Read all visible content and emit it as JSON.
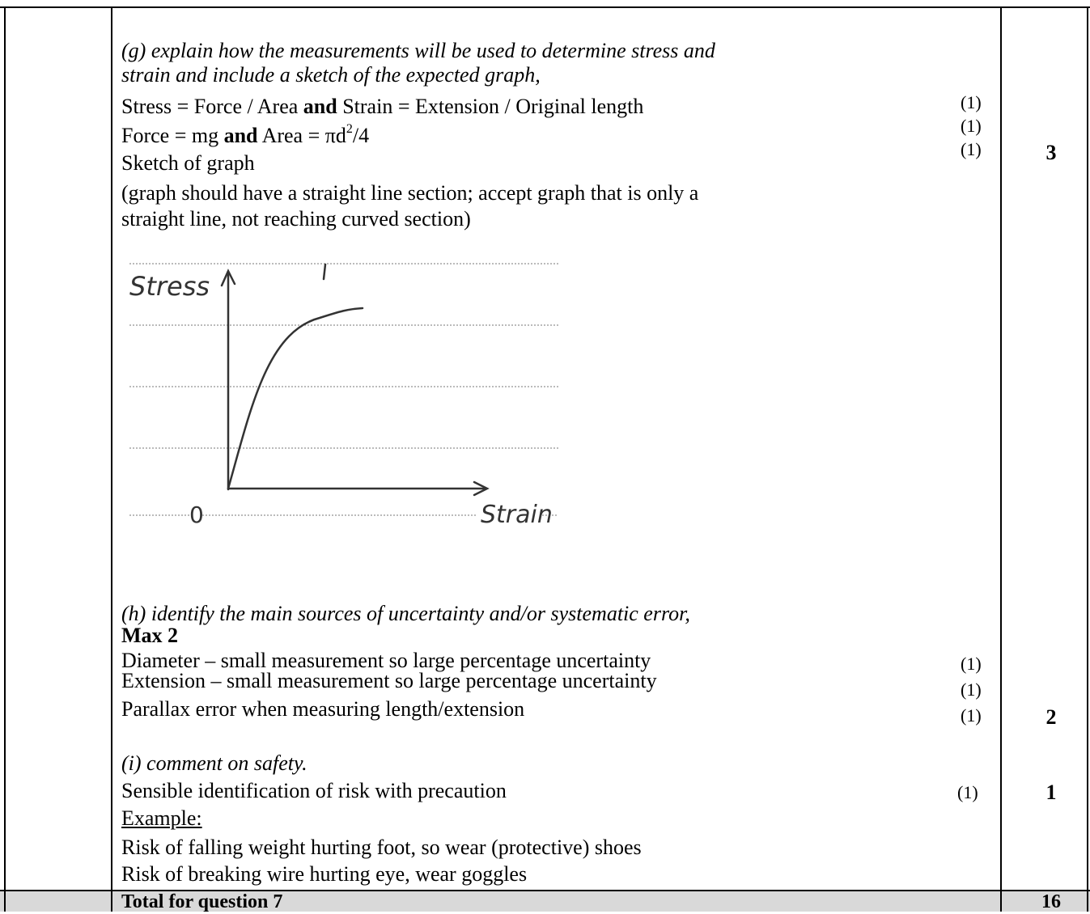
{
  "question_g": {
    "prompt_line1": "(g) explain how the measurements will be used to determine stress and",
    "prompt_line2": "strain and include a sketch of the expected graph,",
    "line1_a": "Stress = Force / Area ",
    "line1_bold": "and",
    "line1_b": " Strain = Extension / Original length",
    "line2_a": "Force = mg ",
    "line2_bold": "and",
    "line2_b": " Area = πd",
    "line2_sup": "2",
    "line2_c": "/4",
    "line3": "Sketch of graph",
    "line4": "(graph should have a straight line section; accept graph that is only a",
    "line5": "straight line, not reaching curved section)",
    "marks": [
      "(1)",
      "(1)",
      "(1)"
    ],
    "total": "3"
  },
  "sketch": {
    "y_label": "Stress",
    "x_label": "Strain",
    "origin_label": "0"
  },
  "question_h": {
    "prompt": "(h) identify the main sources of uncertainty and/or systematic error,",
    "max_label": "Max 2",
    "points": [
      "Diameter – small measurement so large percentage uncertainty",
      "Extension – small measurement so large percentage uncertainty",
      "Parallax error when measuring length/extension"
    ],
    "marks": [
      "(1)",
      "(1)",
      "(1)"
    ],
    "total": "2"
  },
  "question_i": {
    "prompt": "(i) comment on safety.",
    "line1": "Sensible identification of risk with precaution",
    "example_label": "Example:",
    "example1": "Risk of falling weight hurting foot, so wear (protective) shoes",
    "example2": "Risk of breaking wire hurting eye, wear goggles",
    "mark": "(1)",
    "total": "1"
  },
  "total_row": {
    "label": "Total for question 7",
    "value": "16"
  }
}
